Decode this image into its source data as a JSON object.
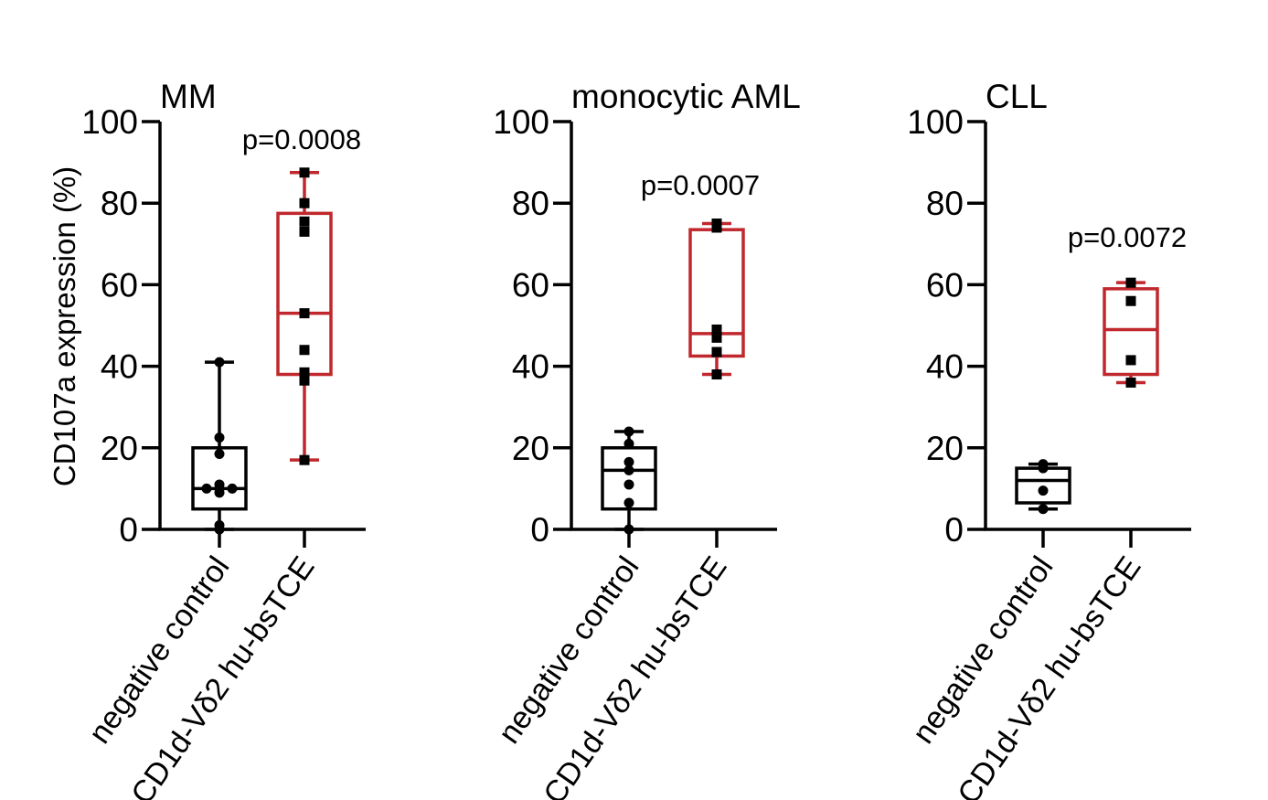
{
  "chart_data": {
    "type": "box",
    "ylabel": "CD107a expression (%)",
    "ylim": [
      0,
      100
    ],
    "yticks": [
      0,
      20,
      40,
      60,
      80,
      100
    ],
    "categories": [
      "negative control",
      "CD1d-Vδ2 hu-bsTCE"
    ],
    "colors": {
      "control": "#000000",
      "treatment": "#c0282d"
    },
    "panels": [
      {
        "title": "MM",
        "p_value": "p=0.0008",
        "boxes": [
          {
            "category": "negative control",
            "min": 0,
            "q1": 5,
            "median": 10,
            "q3": 20,
            "max": 41,
            "points": [
              41,
              22.5,
              18.5,
              11,
              10,
              10,
              10,
              9,
              1,
              0
            ]
          },
          {
            "category": "CD1d-Vδ2 hu-bsTCE",
            "min": 17,
            "q1": 38,
            "median": 53,
            "q3": 77.5,
            "max": 87.5,
            "points": [
              87.5,
              80,
              75.5,
              73,
              53,
              44,
              38.5,
              36.5,
              17
            ]
          }
        ]
      },
      {
        "title": "monocytic AML",
        "p_value": "p=0.0007",
        "boxes": [
          {
            "category": "negative control",
            "min": 0,
            "q1": 5,
            "median": 14.5,
            "q3": 20,
            "max": 24,
            "points": [
              24,
              21,
              16.5,
              14.5,
              11,
              6.5,
              0
            ]
          },
          {
            "category": "CD1d-Vδ2 hu-bsTCE",
            "min": 38,
            "q1": 42.5,
            "median": 48,
            "q3": 73.5,
            "max": 75,
            "points": [
              75,
              74,
              49,
              47,
              43.5,
              38
            ]
          }
        ]
      },
      {
        "title": "CLL",
        "p_value": "p=0.0072",
        "boxes": [
          {
            "category": "negative control",
            "min": 5,
            "q1": 6.5,
            "median": 12,
            "q3": 15,
            "max": 16,
            "points": [
              16,
              15,
              9.5,
              5
            ]
          },
          {
            "category": "CD1d-Vδ2 hu-bsTCE",
            "min": 36,
            "q1": 38,
            "median": 49,
            "q3": 59,
            "max": 60.5,
            "points": [
              60.5,
              56,
              41.5,
              36
            ]
          }
        ]
      }
    ]
  }
}
